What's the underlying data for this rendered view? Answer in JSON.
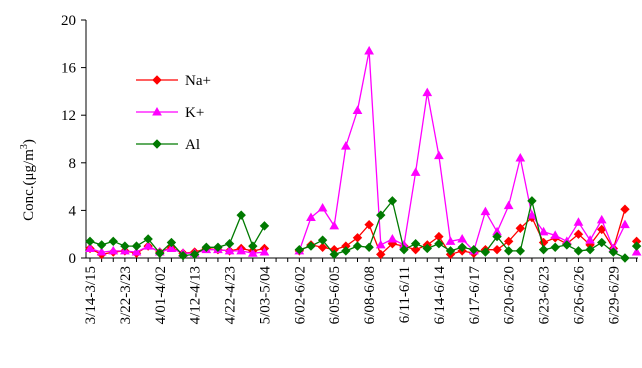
{
  "chart_data": {
    "type": "line",
    "xlabel": "",
    "ylabel": "Conc.(μg/m3)",
    "ylabel_parts": {
      "main": "Conc.(μg/m",
      "sup": "3",
      "close": ")"
    },
    "ylim": [
      0,
      20
    ],
    "yticks": [
      0,
      4,
      8,
      12,
      16,
      20
    ],
    "legend_position": "upper-left",
    "x_tick_labels": [
      "3/14-3/15",
      "3/22-3/23",
      "4/01-4/02",
      "4/12-4/13",
      "4/22-4/23",
      "5/03-5/04",
      "6/02-6/02",
      "6/05-6/05",
      "6/08-6/08",
      "6/11-6/11",
      "6/14-6/14",
      "6/17-6/17",
      "6/20-6/20",
      "6/23-6/23",
      "6/26-6/26",
      "6/29-6/29"
    ],
    "x_tick_positions": [
      0,
      3,
      6,
      9,
      12,
      15,
      18,
      21,
      24,
      27,
      30,
      33,
      36,
      39,
      42,
      45
    ],
    "segments": [
      [
        0,
        15
      ],
      [
        18,
        46
      ]
    ],
    "series": [
      {
        "name": "Na+",
        "color": "#ff0000",
        "marker": "diamond",
        "values": [
          0.8,
          0.3,
          0.5,
          0.6,
          0.4,
          1.0,
          0.5,
          0.9,
          0.4,
          0.5,
          0.8,
          0.7,
          0.6,
          0.8,
          0.6,
          0.8,
          null,
          null,
          0.6,
          1.1,
          0.9,
          0.7,
          1.0,
          1.7,
          2.8,
          0.3,
          1.2,
          1.0,
          0.7,
          1.1,
          1.8,
          0.3,
          0.6,
          0.4,
          0.7,
          0.7,
          1.4,
          2.5,
          3.4,
          1.3,
          1.7,
          1.2,
          2.0,
          1.1,
          2.4,
          0.8,
          4.1,
          1.4
        ]
      },
      {
        "name": "K+",
        "color": "#ff00ff",
        "marker": "triangle",
        "values": [
          0.8,
          0.5,
          0.6,
          0.6,
          0.5,
          1.0,
          0.5,
          0.8,
          0.4,
          0.4,
          0.7,
          0.7,
          0.6,
          0.6,
          0.4,
          0.5,
          null,
          null,
          0.6,
          3.4,
          4.2,
          2.7,
          9.4,
          12.4,
          17.4,
          1.1,
          1.6,
          1.1,
          7.2,
          13.9,
          8.6,
          1.4,
          1.6,
          0.6,
          3.9,
          2.2,
          4.4,
          8.4,
          3.6,
          2.2,
          1.9,
          1.4,
          3.0,
          1.5,
          3.2,
          0.8,
          2.8,
          0.5
        ]
      },
      {
        "name": "Al",
        "color": "#007a00",
        "marker": "diamond",
        "values": [
          1.4,
          1.1,
          1.4,
          1.0,
          1.0,
          1.6,
          0.4,
          1.3,
          0.2,
          0.3,
          0.9,
          0.9,
          1.2,
          3.6,
          1.0,
          2.7,
          null,
          null,
          0.7,
          1.0,
          1.5,
          0.3,
          0.6,
          1.0,
          0.9,
          3.6,
          4.8,
          0.7,
          1.2,
          0.8,
          1.2,
          0.6,
          0.9,
          0.7,
          0.5,
          1.8,
          0.6,
          0.6,
          4.8,
          0.7,
          0.9,
          1.1,
          0.6,
          0.7,
          1.3,
          0.5,
          0.0,
          1.0
        ]
      }
    ]
  }
}
